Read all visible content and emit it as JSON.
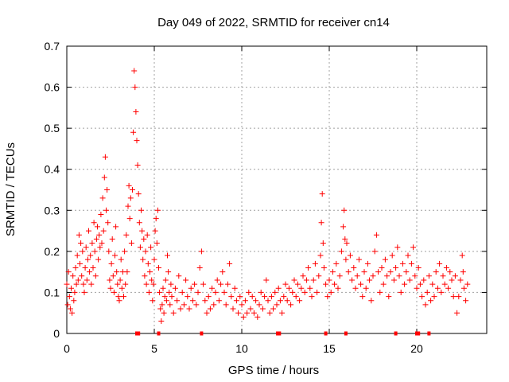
{
  "chart_data": {
    "type": "scatter",
    "title": "Day 049 of 2022, SRMTID for receiver cn14",
    "xlabel": "GPS time / hours",
    "ylabel": "SRMTID / TECUs",
    "xlim": [
      0,
      24
    ],
    "ylim": [
      0,
      0.7
    ],
    "xticks": [
      0,
      5,
      10,
      15,
      20
    ],
    "yticks": [
      0,
      0.1,
      0.2,
      0.3,
      0.4,
      0.5,
      0.6,
      0.7
    ],
    "xtick_labels": [
      "0",
      "5",
      "10",
      "15",
      "20"
    ],
    "ytick_labels": [
      "0",
      "0.1",
      "0.2",
      "0.3",
      "0.4",
      "0.5",
      "0.6",
      "0.7"
    ],
    "grid": true,
    "marker": "+",
    "color": "#ff0000",
    "series": [
      {
        "name": "SRMTID",
        "points": [
          [
            0.0,
            0.12
          ],
          [
            0.05,
            0.07
          ],
          [
            0.1,
            0.15
          ],
          [
            0.15,
            0.09
          ],
          [
            0.2,
            0.06
          ],
          [
            0.25,
            0.11
          ],
          [
            0.3,
            0.05
          ],
          [
            0.35,
            0.14
          ],
          [
            0.4,
            0.08
          ],
          [
            0.45,
            0.1
          ],
          [
            0.5,
            0.16
          ],
          [
            0.55,
            0.12
          ],
          [
            0.6,
            0.19
          ],
          [
            0.65,
            0.13
          ],
          [
            0.7,
            0.24
          ],
          [
            0.75,
            0.17
          ],
          [
            0.8,
            0.22
          ],
          [
            0.85,
            0.14
          ],
          [
            0.9,
            0.2
          ],
          [
            0.95,
            0.12
          ],
          [
            1.0,
            0.1
          ],
          [
            1.05,
            0.16
          ],
          [
            1.1,
            0.21
          ],
          [
            1.15,
            0.13
          ],
          [
            1.2,
            0.18
          ],
          [
            1.25,
            0.25
          ],
          [
            1.3,
            0.15
          ],
          [
            1.35,
            0.19
          ],
          [
            1.4,
            0.12
          ],
          [
            1.45,
            0.22
          ],
          [
            1.5,
            0.16
          ],
          [
            1.55,
            0.27
          ],
          [
            1.6,
            0.2
          ],
          [
            1.65,
            0.14
          ],
          [
            1.7,
            0.23
          ],
          [
            1.75,
            0.26
          ],
          [
            1.8,
            0.18
          ],
          [
            1.85,
            0.24
          ],
          [
            1.9,
            0.21
          ],
          [
            1.95,
            0.29
          ],
          [
            2.0,
            0.22
          ],
          [
            2.05,
            0.33
          ],
          [
            2.1,
            0.25
          ],
          [
            2.15,
            0.38
          ],
          [
            2.2,
            0.43
          ],
          [
            2.25,
            0.3
          ],
          [
            2.3,
            0.35
          ],
          [
            2.35,
            0.27
          ],
          [
            2.4,
            0.2
          ],
          [
            2.45,
            0.13
          ],
          [
            2.5,
            0.11
          ],
          [
            2.55,
            0.17
          ],
          [
            2.6,
            0.23
          ],
          [
            2.65,
            0.14
          ],
          [
            2.7,
            0.1
          ],
          [
            2.75,
            0.19
          ],
          [
            2.8,
            0.26
          ],
          [
            2.85,
            0.15
          ],
          [
            2.9,
            0.12
          ],
          [
            2.95,
            0.09
          ],
          [
            3.0,
            0.08
          ],
          [
            3.05,
            0.13
          ],
          [
            3.1,
            0.18
          ],
          [
            3.15,
            0.11
          ],
          [
            3.2,
            0.15
          ],
          [
            3.25,
            0.09
          ],
          [
            3.3,
            0.2
          ],
          [
            3.35,
            0.12
          ],
          [
            3.4,
            0.24
          ],
          [
            3.45,
            0.15
          ],
          [
            3.5,
            0.31
          ],
          [
            3.55,
            0.36
          ],
          [
            3.6,
            0.28
          ],
          [
            3.65,
            0.33
          ],
          [
            3.7,
            0.22
          ],
          [
            3.75,
            0.35
          ],
          [
            3.8,
            0.49
          ],
          [
            3.85,
            0.64
          ],
          [
            3.9,
            0.6
          ],
          [
            3.95,
            0.54
          ],
          [
            4.0,
            0.47
          ],
          [
            4.05,
            0.41
          ],
          [
            4.1,
            0.34
          ],
          [
            4.15,
            0.27
          ],
          [
            4.2,
            0.21
          ],
          [
            4.25,
            0.3
          ],
          [
            4.3,
            0.25
          ],
          [
            4.35,
            0.18
          ],
          [
            4.4,
            0.23
          ],
          [
            4.45,
            0.14
          ],
          [
            4.5,
            0.2
          ],
          [
            4.55,
            0.12
          ],
          [
            4.6,
            0.24
          ],
          [
            4.65,
            0.17
          ],
          [
            4.7,
            0.1
          ],
          [
            4.75,
            0.15
          ],
          [
            4.8,
            0.21
          ],
          [
            4.85,
            0.13
          ],
          [
            4.9,
            0.08
          ],
          [
            4.95,
            0.12
          ],
          [
            5.0,
            0.18
          ],
          [
            5.05,
            0.25
          ],
          [
            5.1,
            0.28
          ],
          [
            5.15,
            0.22
          ],
          [
            5.2,
            0.3
          ],
          [
            5.25,
            0.16
          ],
          [
            5.3,
            0.1
          ],
          [
            5.35,
            0.06
          ],
          [
            5.4,
            0.03
          ],
          [
            5.45,
            0.07
          ],
          [
            5.5,
            0.11
          ],
          [
            5.55,
            0.05
          ],
          [
            5.6,
            0.09
          ],
          [
            5.65,
            0.13
          ],
          [
            5.7,
            0.08
          ],
          [
            5.75,
            0.19
          ],
          [
            5.8,
            0.15
          ],
          [
            5.85,
            0.1
          ],
          [
            5.9,
            0.07
          ],
          [
            5.95,
            0.12
          ],
          [
            6.0,
            0.09
          ],
          [
            6.1,
            0.05
          ],
          [
            6.2,
            0.11
          ],
          [
            6.3,
            0.08
          ],
          [
            6.4,
            0.14
          ],
          [
            6.5,
            0.06
          ],
          [
            6.6,
            0.1
          ],
          [
            6.7,
            0.07
          ],
          [
            6.8,
            0.13
          ],
          [
            6.9,
            0.09
          ],
          [
            7.0,
            0.06
          ],
          [
            7.1,
            0.11
          ],
          [
            7.2,
            0.08
          ],
          [
            7.3,
            0.12
          ],
          [
            7.4,
            0.07
          ],
          [
            7.5,
            0.1
          ],
          [
            7.6,
            0.16
          ],
          [
            7.7,
            0.2
          ],
          [
            7.8,
            0.12
          ],
          [
            7.9,
            0.08
          ],
          [
            8.0,
            0.05
          ],
          [
            8.1,
            0.09
          ],
          [
            8.2,
            0.06
          ],
          [
            8.3,
            0.11
          ],
          [
            8.4,
            0.07
          ],
          [
            8.5,
            0.1
          ],
          [
            8.6,
            0.13
          ],
          [
            8.7,
            0.08
          ],
          [
            8.8,
            0.12
          ],
          [
            8.9,
            0.15
          ],
          [
            9.0,
            0.1
          ],
          [
            9.1,
            0.07
          ],
          [
            9.2,
            0.12
          ],
          [
            9.3,
            0.17
          ],
          [
            9.4,
            0.09
          ],
          [
            9.5,
            0.06
          ],
          [
            9.6,
            0.11
          ],
          [
            9.7,
            0.08
          ],
          [
            9.8,
            0.05
          ],
          [
            9.9,
            0.09
          ],
          [
            10.0,
            0.07
          ],
          [
            10.1,
            0.04
          ],
          [
            10.2,
            0.08
          ],
          [
            10.3,
            0.05
          ],
          [
            10.4,
            0.1
          ],
          [
            10.5,
            0.06
          ],
          [
            10.6,
            0.09
          ],
          [
            10.7,
            0.05
          ],
          [
            10.8,
            0.08
          ],
          [
            10.9,
            0.04
          ],
          [
            11.0,
            0.07
          ],
          [
            11.1,
            0.1
          ],
          [
            11.2,
            0.06
          ],
          [
            11.3,
            0.09
          ],
          [
            11.4,
            0.13
          ],
          [
            11.5,
            0.08
          ],
          [
            11.6,
            0.05
          ],
          [
            11.7,
            0.09
          ],
          [
            11.8,
            0.06
          ],
          [
            11.9,
            0.1
          ],
          [
            12.0,
            0.07
          ],
          [
            12.1,
            0.11
          ],
          [
            12.2,
            0.08
          ],
          [
            12.3,
            0.05
          ],
          [
            12.4,
            0.09
          ],
          [
            12.5,
            0.12
          ],
          [
            12.6,
            0.08
          ],
          [
            12.7,
            0.11
          ],
          [
            12.8,
            0.07
          ],
          [
            12.9,
            0.1
          ],
          [
            13.0,
            0.13
          ],
          [
            13.1,
            0.09
          ],
          [
            13.2,
            0.12
          ],
          [
            13.3,
            0.08
          ],
          [
            13.4,
            0.11
          ],
          [
            13.5,
            0.14
          ],
          [
            13.6,
            0.1
          ],
          [
            13.7,
            0.13
          ],
          [
            13.8,
            0.16
          ],
          [
            13.9,
            0.11
          ],
          [
            14.0,
            0.09
          ],
          [
            14.1,
            0.13
          ],
          [
            14.2,
            0.17
          ],
          [
            14.3,
            0.1
          ],
          [
            14.4,
            0.14
          ],
          [
            14.5,
            0.19
          ],
          [
            14.55,
            0.27
          ],
          [
            14.6,
            0.34
          ],
          [
            14.65,
            0.22
          ],
          [
            14.7,
            0.16
          ],
          [
            14.8,
            0.12
          ],
          [
            14.9,
            0.09
          ],
          [
            15.0,
            0.13
          ],
          [
            15.1,
            0.1
          ],
          [
            15.2,
            0.15
          ],
          [
            15.3,
            0.12
          ],
          [
            15.4,
            0.17
          ],
          [
            15.5,
            0.11
          ],
          [
            15.6,
            0.14
          ],
          [
            15.7,
            0.2
          ],
          [
            15.8,
            0.26
          ],
          [
            15.85,
            0.3
          ],
          [
            15.9,
            0.23
          ],
          [
            15.95,
            0.18
          ],
          [
            16.0,
            0.22
          ],
          [
            16.1,
            0.15
          ],
          [
            16.2,
            0.19
          ],
          [
            16.3,
            0.13
          ],
          [
            16.4,
            0.16
          ],
          [
            16.5,
            0.11
          ],
          [
            16.6,
            0.14
          ],
          [
            16.7,
            0.18
          ],
          [
            16.8,
            0.12
          ],
          [
            16.9,
            0.09
          ],
          [
            17.0,
            0.15
          ],
          [
            17.1,
            0.11
          ],
          [
            17.2,
            0.17
          ],
          [
            17.3,
            0.13
          ],
          [
            17.4,
            0.08
          ],
          [
            17.5,
            0.14
          ],
          [
            17.6,
            0.2
          ],
          [
            17.7,
            0.24
          ],
          [
            17.8,
            0.15
          ],
          [
            17.9,
            0.1
          ],
          [
            18.0,
            0.16
          ],
          [
            18.1,
            0.12
          ],
          [
            18.2,
            0.18
          ],
          [
            18.3,
            0.14
          ],
          [
            18.4,
            0.09
          ],
          [
            18.5,
            0.15
          ],
          [
            18.6,
            0.19
          ],
          [
            18.7,
            0.13
          ],
          [
            18.8,
            0.16
          ],
          [
            18.9,
            0.21
          ],
          [
            19.0,
            0.14
          ],
          [
            19.1,
            0.1
          ],
          [
            19.2,
            0.17
          ],
          [
            19.3,
            0.12
          ],
          [
            19.4,
            0.15
          ],
          [
            19.5,
            0.19
          ],
          [
            19.6,
            0.13
          ],
          [
            19.7,
            0.17
          ],
          [
            19.8,
            0.21
          ],
          [
            19.9,
            0.14
          ],
          [
            20.0,
            0.11
          ],
          [
            20.1,
            0.16
          ],
          [
            20.2,
            0.12
          ],
          [
            20.3,
            0.09
          ],
          [
            20.4,
            0.13
          ],
          [
            20.5,
            0.07
          ],
          [
            20.6,
            0.1
          ],
          [
            20.7,
            0.14
          ],
          [
            20.8,
            0.08
          ],
          [
            20.9,
            0.12
          ],
          [
            21.0,
            0.09
          ],
          [
            21.1,
            0.15
          ],
          [
            21.2,
            0.11
          ],
          [
            21.3,
            0.17
          ],
          [
            21.4,
            0.1
          ],
          [
            21.5,
            0.14
          ],
          [
            21.6,
            0.12
          ],
          [
            21.7,
            0.16
          ],
          [
            21.8,
            0.11
          ],
          [
            21.9,
            0.15
          ],
          [
            22.0,
            0.13
          ],
          [
            22.1,
            0.09
          ],
          [
            22.2,
            0.14
          ],
          [
            22.3,
            0.05
          ],
          [
            22.4,
            0.09
          ],
          [
            22.5,
            0.13
          ],
          [
            22.6,
            0.19
          ],
          [
            22.65,
            0.15
          ],
          [
            22.7,
            0.11
          ],
          [
            22.8,
            0.08
          ],
          [
            22.9,
            0.12
          ]
        ]
      }
    ],
    "baseline_marks": [
      4.0,
      4.1,
      5.25,
      7.7,
      12.05,
      12.15,
      14.8,
      15.95,
      18.8,
      20.0,
      20.1,
      20.7
    ]
  }
}
